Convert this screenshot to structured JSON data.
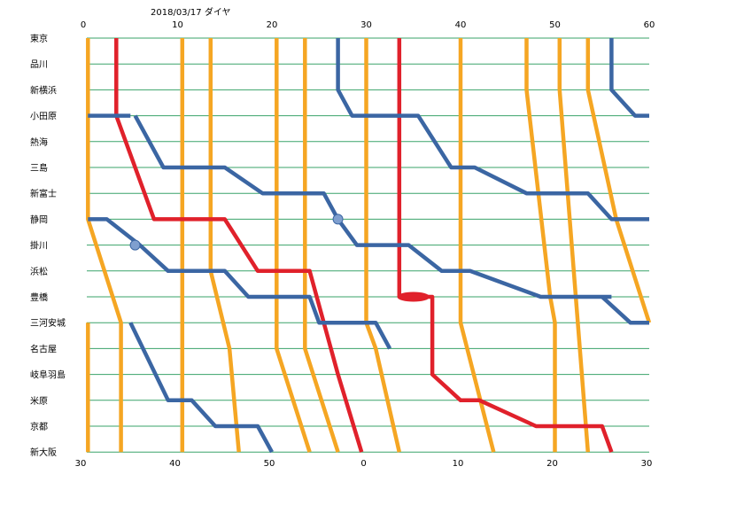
{
  "chart_data": {
    "type": "line",
    "title": "2018/03/17 ダイヤ",
    "stations": [
      "東京",
      "品川",
      "新横浜",
      "小田原",
      "熱海",
      "三島",
      "新富士",
      "静岡",
      "掛川",
      "浜松",
      "豊橋",
      "三河安城",
      "名古屋",
      "岐阜羽島",
      "米原",
      "京都",
      "新大阪"
    ],
    "top_axis_labels": [
      "0",
      "10",
      "20",
      "30",
      "40",
      "50",
      "60"
    ],
    "bottom_axis_labels": [
      "30",
      "40",
      "50",
      "0",
      "10",
      "20",
      "30"
    ],
    "x_top_range": [
      0,
      60
    ],
    "x_bottom_range": [
      30,
      90
    ],
    "grid": true,
    "colors": {
      "grid": "#3aa36a",
      "orange": "#f5a623",
      "blue": "#3b66a3",
      "red": "#e0212b",
      "marker": "#7f9fcf"
    },
    "series": [
      {
        "color": "orange",
        "points": [
          [
            0.5,
            0
          ],
          [
            0.5,
            7
          ],
          [
            4,
            11
          ],
          [
            4,
            16
          ]
        ]
      },
      {
        "color": "orange",
        "points": [
          [
            10.5,
            0
          ],
          [
            10.5,
            16
          ]
        ]
      },
      {
        "color": "orange",
        "points": [
          [
            13.5,
            0
          ],
          [
            13.5,
            9
          ],
          [
            15.5,
            12
          ],
          [
            16.5,
            16
          ]
        ]
      },
      {
        "color": "orange",
        "points": [
          [
            20.5,
            0
          ],
          [
            20.5,
            12
          ],
          [
            24,
            16
          ]
        ]
      },
      {
        "color": "orange",
        "points": [
          [
            23.5,
            0
          ],
          [
            23.5,
            12
          ],
          [
            27,
            16
          ]
        ]
      },
      {
        "color": "orange",
        "points": [
          [
            30,
            0
          ],
          [
            30,
            11
          ],
          [
            31,
            12
          ],
          [
            33.5,
            16
          ]
        ]
      },
      {
        "color": "orange",
        "points": [
          [
            40,
            0
          ],
          [
            40,
            11
          ],
          [
            43.5,
            16
          ]
        ]
      },
      {
        "color": "orange",
        "points": [
          [
            47,
            0
          ],
          [
            47,
            2
          ],
          [
            49.5,
            10
          ],
          [
            50,
            11
          ],
          [
            50,
            16
          ]
        ]
      },
      {
        "color": "orange",
        "points": [
          [
            50.5,
            0
          ],
          [
            50.5,
            2
          ],
          [
            53.5,
            16
          ]
        ]
      },
      {
        "color": "orange",
        "points": [
          [
            53.5,
            0
          ],
          [
            53.5,
            2
          ],
          [
            56.5,
            7
          ],
          [
            60,
            11
          ]
        ]
      },
      {
        "color": "orange",
        "points": [
          [
            0.5,
            11
          ],
          [
            0.5,
            16
          ]
        ]
      },
      {
        "color": "red",
        "points": [
          [
            3.5,
            0
          ],
          [
            3.5,
            3
          ],
          [
            7.5,
            7
          ],
          [
            15,
            7
          ],
          [
            18.5,
            9
          ],
          [
            24,
            9
          ],
          [
            27,
            13
          ],
          [
            29.5,
            16
          ]
        ]
      },
      {
        "color": "red",
        "points": [
          [
            33.5,
            0
          ],
          [
            33.5,
            10
          ],
          [
            37,
            10
          ],
          [
            37,
            13
          ],
          [
            40,
            14
          ],
          [
            42,
            14
          ],
          [
            48,
            15
          ],
          [
            55,
            15
          ],
          [
            56,
            16
          ]
        ]
      },
      {
        "color": "blue",
        "points": [
          [
            27,
            0
          ],
          [
            27,
            2
          ],
          [
            28.5,
            3
          ],
          [
            34,
            3
          ],
          [
            35.5,
            3
          ],
          [
            39,
            5
          ],
          [
            41.5,
            5
          ],
          [
            47,
            6
          ],
          [
            53.5,
            6
          ],
          [
            56,
            7
          ],
          [
            60,
            7
          ]
        ]
      },
      {
        "color": "blue",
        "points": [
          [
            0.5,
            3
          ],
          [
            5,
            3
          ]
        ]
      },
      {
        "color": "blue",
        "points": [
          [
            5.5,
            3
          ],
          [
            8.5,
            5
          ],
          [
            15,
            5
          ],
          [
            19,
            6
          ],
          [
            25.5,
            6
          ],
          [
            27,
            7
          ],
          [
            29,
            8
          ],
          [
            33,
            8
          ],
          [
            34.5,
            8
          ],
          [
            38,
            9
          ],
          [
            41,
            9
          ],
          [
            48.5,
            10
          ],
          [
            55,
            10
          ],
          [
            56,
            10
          ]
        ]
      },
      {
        "color": "blue",
        "points": [
          [
            0.5,
            7
          ],
          [
            2.5,
            7
          ],
          [
            6,
            8
          ],
          [
            9,
            9
          ],
          [
            15,
            9
          ],
          [
            17.5,
            10
          ],
          [
            24,
            10
          ],
          [
            25,
            11
          ],
          [
            31,
            11
          ],
          [
            32.5,
            12
          ]
        ]
      },
      {
        "color": "blue",
        "points": [
          [
            5,
            11
          ],
          [
            9,
            14
          ],
          [
            11.5,
            14
          ],
          [
            14,
            15
          ],
          [
            18.5,
            15
          ],
          [
            20,
            16
          ]
        ]
      },
      {
        "color": "blue",
        "points": [
          [
            56,
            0
          ],
          [
            56,
            2
          ],
          [
            58.5,
            3
          ],
          [
            60,
            3
          ]
        ]
      },
      {
        "color": "blue",
        "points": [
          [
            55,
            10
          ],
          [
            58,
            11
          ],
          [
            60,
            11
          ]
        ]
      }
    ],
    "markers": [
      {
        "x": 27,
        "y": 7
      },
      {
        "x": 5.5,
        "y": 8
      }
    ],
    "ellipse": {
      "x": 35,
      "y": 10
    }
  }
}
